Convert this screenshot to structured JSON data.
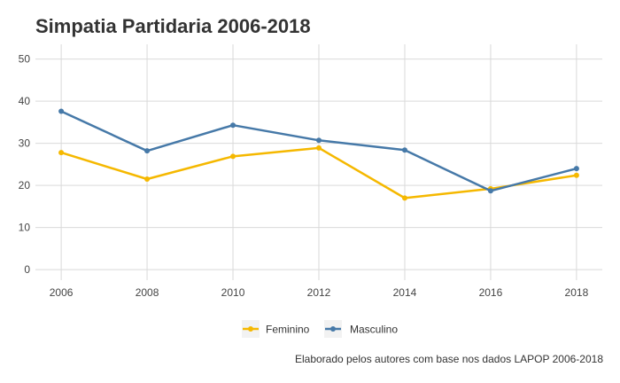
{
  "chart_data": {
    "type": "line",
    "title": "Simpatia Partidaria 2006-2018",
    "x": [
      2006,
      2008,
      2010,
      2012,
      2014,
      2016,
      2018
    ],
    "xlim": [
      2005.4,
      2018.6
    ],
    "ylim": [
      -2.5,
      53.5
    ],
    "yticks": [
      0,
      10,
      20,
      30,
      40,
      50
    ],
    "grid": true,
    "legend_position": "bottom",
    "series": [
      {
        "name": "Feminino",
        "color": "#F5B800",
        "values": [
          27.8,
          21.5,
          26.9,
          28.9,
          17.0,
          19.2,
          22.4
        ]
      },
      {
        "name": "Masculino",
        "color": "#4679A8",
        "values": [
          37.6,
          28.2,
          34.3,
          30.7,
          28.4,
          18.7,
          24.0
        ]
      }
    ],
    "caption": "Elaborado pelos autores com base nos dados LAPOP 2006-2018"
  }
}
